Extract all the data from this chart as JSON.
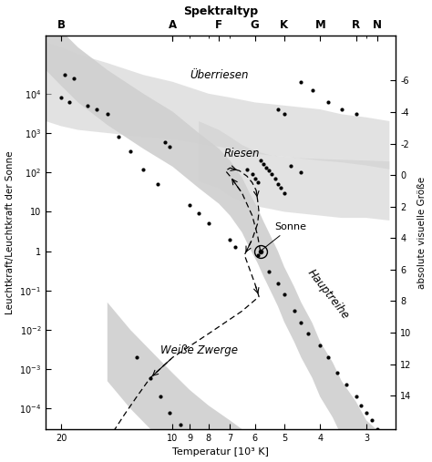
{
  "title": "Spektraltyp",
  "xlabel": "Temperatur [10³ K]",
  "ylabel": "Leuchtkraft/Leuchtkraft der Sonne",
  "ylabel_right": "absolute visuelle Größe",
  "spectral_types": [
    "B",
    "A",
    "F",
    "G",
    "K",
    "M",
    "R",
    "N"
  ],
  "spectral_temps": [
    20,
    10,
    7.5,
    6,
    5,
    4,
    3.2,
    2.8
  ],
  "xmin": 2.5,
  "xmax": 22,
  "ymin": 3e-05,
  "ymax": 300000.0,
  "mag_ticks": [
    -6,
    -4,
    -2,
    0,
    2,
    4,
    6,
    8,
    10,
    12,
    14
  ],
  "label_ueberriesen": "Überriesen",
  "label_riesen": "Riesen",
  "label_hauptreihe": "Hauptreihe",
  "label_weisse_zwerge": "Weiße Zwerge",
  "label_sonne": "Sonne",
  "sun_temp": 5.8,
  "sun_lum": 1.0,
  "band_color_dark": "#b0b0b0",
  "band_color_light": "#d0d0d0",
  "background_color": "#ffffff",
  "hauptreihe_x": [
    22,
    20,
    18,
    15,
    12,
    10,
    8.5,
    7.5,
    7.0,
    6.5,
    6.2,
    5.9,
    5.7,
    5.5,
    5.2,
    5.0,
    4.7,
    4.5,
    4.2,
    4.0,
    3.7,
    3.5,
    3.2,
    3.0,
    2.6
  ],
  "hauptreihe_c": [
    200000.0,
    80000.0,
    30000.0,
    8000.0,
    2000.0,
    700.0,
    200.0,
    80,
    40,
    15,
    6,
    2.5,
    1.2,
    0.6,
    0.2,
    0.08,
    0.025,
    0.01,
    0.003,
    0.001,
    0.0003,
    0.0001,
    3e-05,
    1e-05,
    3e-06
  ],
  "hauptreihe_width_up": [
    5,
    5,
    5,
    5,
    5,
    5,
    5,
    5,
    5,
    5,
    5,
    5,
    5,
    5,
    5,
    5,
    5,
    5,
    5,
    5,
    5,
    5,
    5,
    5,
    5
  ],
  "hauptreihe_width_dn": [
    5,
    5,
    5,
    5,
    5,
    5,
    5,
    5,
    5,
    5,
    5,
    5,
    5,
    5,
    5,
    5,
    5,
    5,
    5,
    5,
    5,
    5,
    5,
    5,
    5
  ],
  "riesen_x": [
    8.5,
    7.5,
    7.0,
    6.5,
    6.0,
    5.5,
    5.0,
    4.5,
    4.0,
    3.5,
    3.0,
    2.6
  ],
  "riesen_up": [
    2000,
    1200,
    800,
    500,
    350,
    280,
    250,
    230,
    220,
    210,
    200,
    190
  ],
  "riesen_dn": [
    60,
    40,
    25,
    18,
    14,
    12,
    10,
    9,
    8,
    7,
    7,
    6
  ],
  "ueberriesen_x": [
    22,
    20,
    18,
    15,
    12,
    10,
    8,
    7,
    6,
    5,
    4,
    3.5,
    3.0,
    2.6
  ],
  "ueberriesen_up": [
    200000.0,
    150000.0,
    100000.0,
    60000.0,
    30000.0,
    20000.0,
    10000.0,
    8000.0,
    6000.0,
    5000.0,
    4000.0,
    3000.0,
    2500.0,
    2000.0
  ],
  "ueberriesen_dn": [
    2000.0,
    1500.0,
    1200.0,
    1000.0,
    800.0,
    700.0,
    500.0,
    400.0,
    300.0,
    250.0,
    200.0,
    180.0,
    150.0,
    120.0
  ],
  "wdwarf_x": [
    15,
    13,
    11,
    10,
    9,
    8,
    7,
    6.5,
    6.0,
    5.5
  ],
  "wdwarf_up": [
    0.05,
    0.01,
    0.002,
    0.0008,
    0.0003,
    0.00012,
    5e-05,
    3e-05,
    2e-05,
    1.5e-05
  ],
  "wdwarf_dn": [
    0.0005,
    0.0001,
    2e-05,
    8e-06,
    3e-06,
    1.2e-06,
    5e-07,
    3e-07,
    2e-07,
    1.5e-07
  ],
  "stars": [
    [
      19.5,
      30000.0
    ],
    [
      18.5,
      25000.0
    ],
    [
      20,
      8000.0
    ],
    [
      19,
      6000.0
    ],
    [
      17,
      5000.0
    ],
    [
      16,
      4000.0
    ],
    [
      15,
      3000.0
    ],
    [
      4.5,
      20000.0
    ],
    [
      4.2,
      12000.0
    ],
    [
      3.8,
      6000.0
    ],
    [
      3.5,
      4000.0
    ],
    [
      3.2,
      3000.0
    ],
    [
      5.2,
      4000.0
    ],
    [
      5.0,
      3000.0
    ],
    [
      10.5,
      600
    ],
    [
      10.2,
      450
    ],
    [
      6.3,
      120
    ],
    [
      6.1,
      90
    ],
    [
      6.0,
      70
    ],
    [
      5.9,
      55
    ],
    [
      5.8,
      200
    ],
    [
      5.7,
      160
    ],
    [
      5.6,
      130
    ],
    [
      5.5,
      110
    ],
    [
      5.4,
      90
    ],
    [
      5.3,
      70
    ],
    [
      5.2,
      50
    ],
    [
      5.1,
      40
    ],
    [
      5.0,
      30
    ],
    [
      4.8,
      150
    ],
    [
      4.5,
      100
    ],
    [
      14,
      800
    ],
    [
      13,
      350
    ],
    [
      12,
      120
    ],
    [
      11,
      50
    ],
    [
      9.0,
      15
    ],
    [
      8.5,
      9
    ],
    [
      8.0,
      5
    ],
    [
      7.0,
      2
    ],
    [
      6.8,
      1.3
    ],
    [
      5.9,
      0.8
    ],
    [
      5.5,
      0.3
    ],
    [
      5.2,
      0.15
    ],
    [
      5.0,
      0.08
    ],
    [
      4.7,
      0.03
    ],
    [
      4.5,
      0.015
    ],
    [
      4.3,
      0.008
    ],
    [
      4.0,
      0.004
    ],
    [
      3.8,
      0.002
    ],
    [
      3.6,
      0.0008
    ],
    [
      3.4,
      0.0004
    ],
    [
      3.2,
      0.0002
    ],
    [
      3.1,
      0.00012
    ],
    [
      3.0,
      8e-05
    ],
    [
      2.9,
      5e-05
    ],
    [
      2.8,
      3e-05
    ],
    [
      12.5,
      0.002
    ],
    [
      11.5,
      0.0006
    ],
    [
      10.8,
      0.0002
    ],
    [
      10.2,
      8e-05
    ],
    [
      9.5,
      4e-05
    ],
    [
      9.0,
      2e-05
    ]
  ],
  "evol_track": {
    "x": [
      5.8,
      5.9,
      6.1,
      6.5,
      7.0,
      7.2,
      7.0,
      6.6,
      6.3,
      6.1,
      5.95,
      5.9,
      5.85,
      5.9,
      6.1,
      6.4,
      6.2,
      6.0,
      5.85,
      6.5,
      8.0,
      10.0,
      11.5,
      12.5,
      13.5,
      14.5,
      15.0
    ],
    "y": [
      1.0,
      2.5,
      8,
      30,
      80,
      110,
      130,
      110,
      80,
      55,
      35,
      20,
      10,
      5,
      2.0,
      0.8,
      0.35,
      0.15,
      0.07,
      0.03,
      0.008,
      0.002,
      0.0006,
      0.0002,
      7e-05,
      2.5e-05,
      1e-05
    ],
    "arrow_indices": [
      3,
      6,
      10,
      14,
      17,
      21,
      24
    ]
  }
}
